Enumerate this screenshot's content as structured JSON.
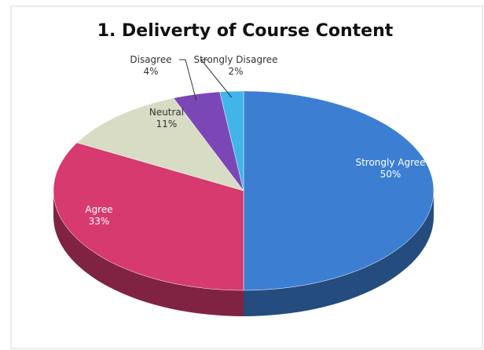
{
  "chart_data": {
    "type": "pie",
    "title": "1. Deliverty of Course Content",
    "categories": [
      "Strongly Agree",
      "Agree",
      "Neutral",
      "Disagree",
      "Strongly Disagree"
    ],
    "values": [
      50,
      33,
      11,
      4,
      2
    ],
    "value_labels": [
      "50%",
      "33%",
      "11%",
      "4%",
      "2%"
    ],
    "colors": [
      "#3c7fd2",
      "#d63a6e",
      "#d8dcc4",
      "#7b47b6",
      "#41b5e8"
    ]
  }
}
